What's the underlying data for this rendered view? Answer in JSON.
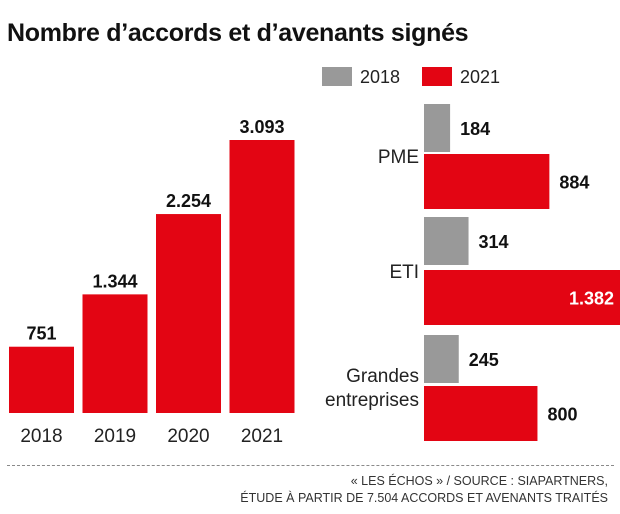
{
  "title": "Nombre d’accords et d’avenants signés",
  "source": {
    "line1": "« LES ÉCHOS » / SOURCE : SIAPARTNERS,",
    "line2": "ÉTUDE À PARTIR DE 7.504 ACCORDS ET AVENANTS TRAITÉS"
  },
  "colors": {
    "grey": "#999999",
    "red": "#e30513",
    "text": "#111111"
  },
  "chart_data": [
    {
      "type": "bar",
      "categories": [
        "2018",
        "2019",
        "2020",
        "2021"
      ],
      "values": [
        751,
        1344,
        2254,
        3093
      ],
      "value_labels": [
        "751",
        "1.344",
        "2.254",
        "3.093"
      ],
      "ylim": [
        0,
        3093
      ],
      "grid": false
    },
    {
      "type": "bar",
      "orientation": "horizontal",
      "categories": [
        "PME",
        "ETI",
        "Grandes entreprises"
      ],
      "category_lines": [
        [
          "PME"
        ],
        [
          "ETI"
        ],
        [
          "Grandes",
          "entreprises"
        ]
      ],
      "series": [
        {
          "name": "2018",
          "values": [
            184,
            314,
            245
          ],
          "value_labels": [
            "184",
            "314",
            "245"
          ]
        },
        {
          "name": "2021",
          "values": [
            884,
            1382,
            800
          ],
          "value_labels": [
            "884",
            "1.382",
            "800"
          ]
        }
      ],
      "xlim": [
        0,
        1382
      ],
      "legend": "top",
      "grid": false
    }
  ]
}
